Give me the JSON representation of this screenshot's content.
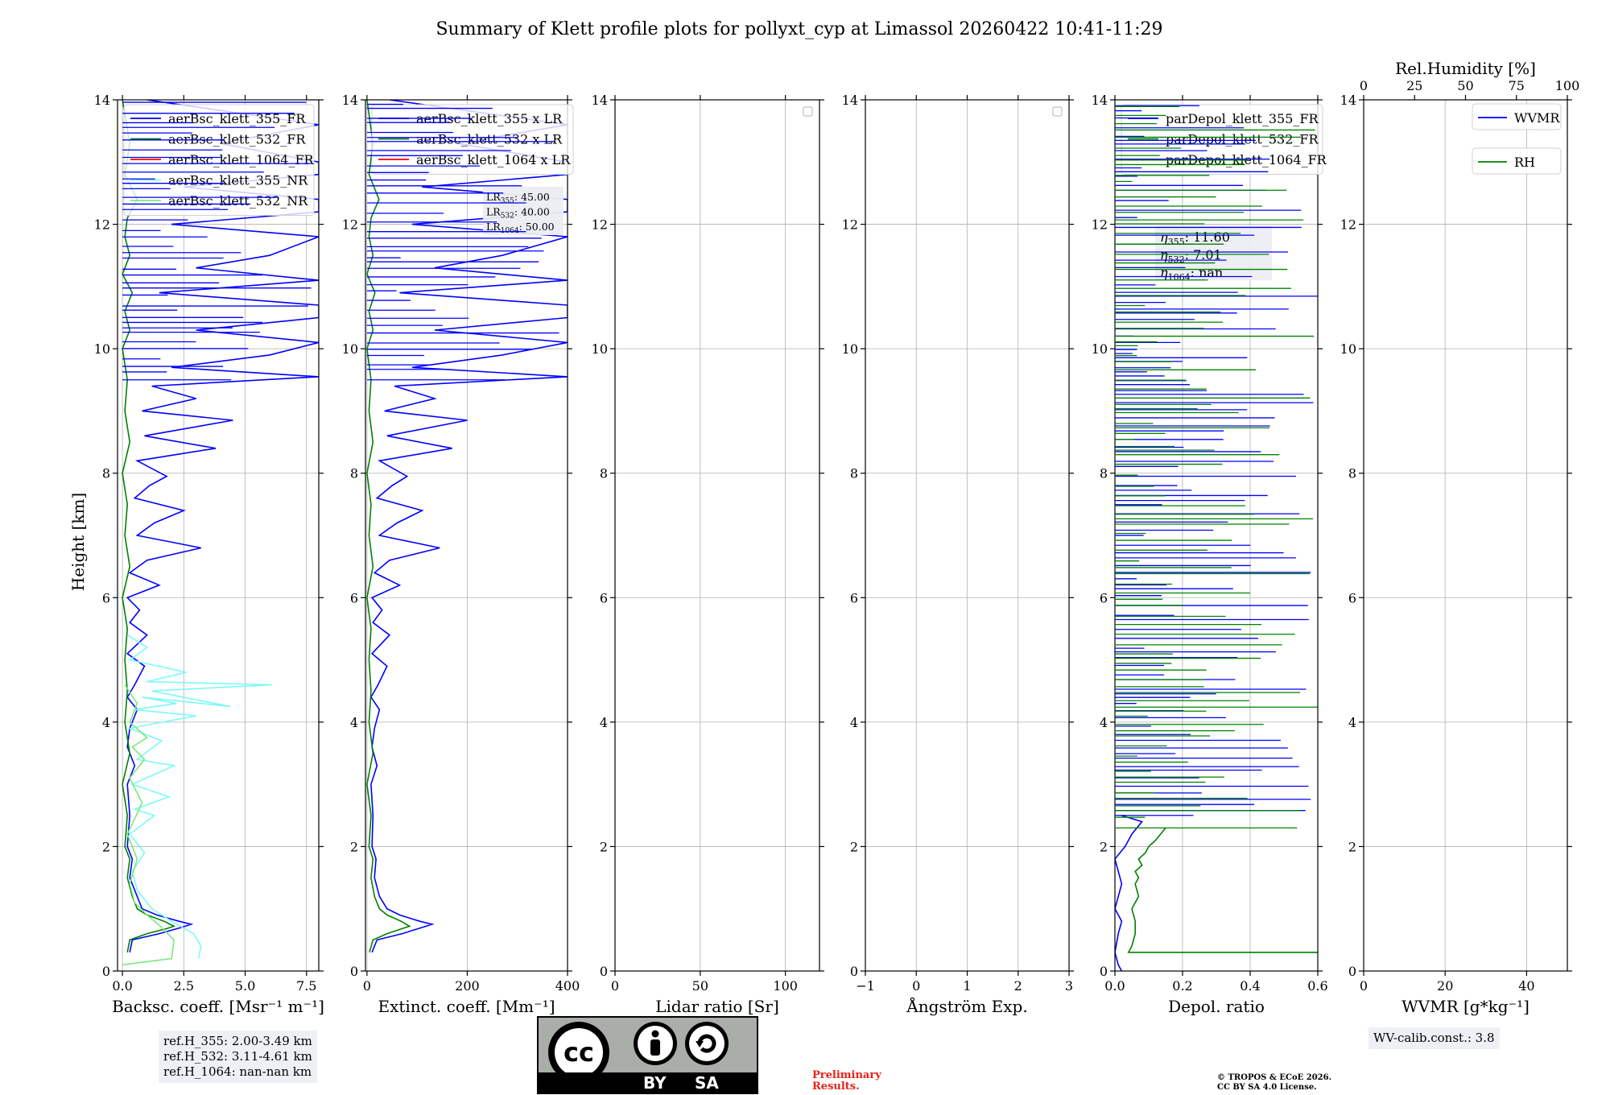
{
  "title": "Summary of Klett profile plots for pollyxt_cyp at Limassol 20260422 10:41-11:29",
  "ylabel": "Height [km]",
  "colors": {
    "blue": "#0000ff",
    "green": "#008000",
    "red": "#ff0000",
    "cyan": "#7cf9f9",
    "lightgreen": "#7ce87c"
  },
  "chart_data": [
    {
      "type": "line",
      "name": "backscatter",
      "xlabel": "Backsc. coeff. [Msr⁻¹ m⁻¹]",
      "xlim": [
        -0.2,
        8.0
      ],
      "ylim": [
        0,
        14
      ],
      "xticks": [
        0.0,
        2.5,
        5.0,
        7.5
      ],
      "xtick_labels": [
        "0.0",
        "2.5",
        "5.0",
        "7.5"
      ],
      "yticks": [
        0,
        2,
        4,
        6,
        8,
        10,
        12,
        14
      ],
      "ytick_labels": [
        "0",
        "2",
        "4",
        "6",
        "8",
        "10",
        "12",
        "14"
      ],
      "legend": [
        "aerBsc_klett_355_FR",
        "aerBsc_klett_532_FR",
        "aerBsc_klett_1064_FR",
        "aerBsc_klett_355_NR",
        "aerBsc_klett_532_NR"
      ],
      "legend_colors": [
        "blue",
        "green",
        "red",
        "cyan",
        "lightgreen"
      ],
      "series": [
        {
          "name": "aerBsc_klett_355_FR",
          "color": "blue",
          "x": [
            0.3,
            0.4,
            1.5,
            2.4,
            2.8,
            2.3,
            1.4,
            0.8,
            0.6,
            0.3,
            0.4,
            0.2,
            0.3,
            0.2,
            0.5,
            0.2,
            0.3,
            0.6,
            0.2,
            0.5,
            0.9,
            0.2,
            1.0,
            0.3,
            0.7,
            0.2,
            1.5,
            0.3,
            1.0,
            3.2,
            0.6,
            1.3,
            2.5,
            0.5,
            1.1,
            1.8,
            0.6,
            3.8,
            0.9,
            4.5,
            0.8,
            3.0,
            1.2,
            8.0,
            2.0,
            6.0,
            8.0,
            3.0,
            8.0,
            8.0,
            1.5,
            8.0,
            3.0,
            6.0,
            8.0,
            2.0,
            8.0,
            8.0,
            2.5,
            8.0,
            8.0,
            4.0,
            8.0,
            1.0
          ],
          "y": [
            0.3,
            0.5,
            0.6,
            0.7,
            0.75,
            0.8,
            0.9,
            1.0,
            1.2,
            1.5,
            1.8,
            2.0,
            2.5,
            3.0,
            3.3,
            3.6,
            3.9,
            4.2,
            4.4,
            4.6,
            4.9,
            5.1,
            5.4,
            5.6,
            5.8,
            6.0,
            6.2,
            6.4,
            6.6,
            6.8,
            7.0,
            7.2,
            7.4,
            7.6,
            7.8,
            7.95,
            8.2,
            8.4,
            8.6,
            8.85,
            9.0,
            9.2,
            9.4,
            9.55,
            9.7,
            9.9,
            10.1,
            10.3,
            10.5,
            10.7,
            10.9,
            11.1,
            11.3,
            11.5,
            11.8,
            12.0,
            12.2,
            12.4,
            12.6,
            12.8,
            13.0,
            13.3,
            13.6,
            14.0
          ]
        },
        {
          "name": "aerBsc_klett_532_FR",
          "color": "green",
          "x": [
            0.2,
            0.3,
            1.0,
            1.8,
            2.1,
            1.7,
            1.0,
            0.6,
            0.4,
            0.2,
            0.3,
            0.1,
            0.2,
            0.0,
            0.3,
            0.1,
            0.2,
            0.1,
            0.2,
            0.0,
            0.3,
            0.1,
            0.2,
            0.0,
            0.3,
            0.1,
            0.2,
            0.0,
            0.3,
            0.1,
            0.4,
            0.0,
            0.3,
            0.1,
            0.2,
            0.6,
            0.1,
            0.3,
            0.0
          ],
          "y": [
            0.3,
            0.5,
            0.6,
            0.68,
            0.72,
            0.8,
            0.9,
            1.0,
            1.2,
            1.5,
            1.8,
            2.0,
            2.5,
            3.0,
            3.5,
            4.0,
            4.5,
            5.0,
            5.5,
            6.0,
            6.5,
            7.0,
            7.5,
            8.0,
            8.5,
            9.0,
            9.5,
            10.0,
            10.3,
            10.6,
            10.9,
            11.2,
            11.5,
            11.8,
            12.1,
            12.4,
            12.8,
            13.3,
            14.0
          ]
        },
        {
          "name": "aerBsc_klett_355_NR",
          "color": "cyan",
          "x": [
            3.1,
            3.2,
            2.9,
            2.0,
            1.2,
            0.6,
            0.4,
            0.9,
            0.3,
            1.3,
            0.5,
            1.9,
            0.4,
            2.1,
            0.6,
            1.6,
            0.3,
            3.0,
            0.5,
            2.2,
            0.8,
            4.4,
            1.2,
            6.1,
            1.0,
            2.6,
            0.3,
            1.0,
            0.2
          ],
          "y": [
            0.2,
            0.4,
            0.6,
            0.8,
            1.0,
            1.3,
            1.6,
            1.9,
            2.2,
            2.5,
            2.6,
            2.8,
            3.0,
            3.3,
            3.4,
            3.7,
            3.9,
            4.1,
            4.2,
            4.3,
            4.4,
            4.25,
            4.5,
            4.6,
            4.65,
            4.8,
            5.0,
            5.2,
            5.4
          ]
        },
        {
          "name": "aerBsc_klett_532_NR",
          "color": "lightgreen",
          "x": [
            0.0,
            2.0,
            2.1,
            1.6,
            1.0,
            0.5,
            0.3,
            0.6,
            0.2,
            0.8,
            0.3,
            0.9,
            0.4,
            1.0,
            0.3,
            0.6,
            0.1
          ],
          "y": [
            0.1,
            0.2,
            0.5,
            0.7,
            0.9,
            1.1,
            1.4,
            1.8,
            2.2,
            2.7,
            3.1,
            3.4,
            3.6,
            3.75,
            4.0,
            4.3,
            4.6
          ]
        }
      ]
    },
    {
      "type": "line",
      "name": "extinction",
      "xlabel": "Extinct. coeff. [Mm⁻¹]",
      "xlim": [
        -3,
        400
      ],
      "ylim": [
        0,
        14
      ],
      "xticks": [
        0,
        200,
        400
      ],
      "xtick_labels": [
        "0",
        "200",
        "400"
      ],
      "yticks": [
        0,
        2,
        4,
        6,
        8,
        10,
        12,
        14
      ],
      "ytick_labels": [
        "0",
        "2",
        "4",
        "6",
        "8",
        "10",
        "12",
        "14"
      ],
      "legend": [
        "aerBsc_klett_355 x LR",
        "aerBsc_klett_532 x LR",
        "aerBsc_klett_1064 x LR"
      ],
      "legend_colors": [
        "blue",
        "green",
        "red"
      ],
      "lr_labels": [
        {
          "name": "LR",
          "sub": "355",
          "value": ": 45.00"
        },
        {
          "name": "LR",
          "sub": "532",
          "value": ": 40.00"
        },
        {
          "name": "LR",
          "sub": "1064",
          "value": ": 50.00"
        }
      ],
      "series": [
        {
          "name": "aerBsc_klett_355 x LR",
          "color": "blue",
          "x": [
            10,
            20,
            70,
            110,
            130,
            105,
            65,
            40,
            25,
            15,
            18,
            10,
            12,
            8,
            20,
            10,
            15,
            25,
            8,
            22,
            40,
            10,
            45,
            12,
            30,
            10,
            65,
            15,
            45,
            145,
            25,
            60,
            110,
            20,
            50,
            80,
            25,
            170,
            40,
            200,
            35,
            135,
            55,
            400,
            90,
            270,
            400,
            135,
            400,
            400,
            65,
            400,
            135,
            270,
            400,
            90,
            400,
            400,
            110,
            400,
            400,
            180,
            400,
            45
          ],
          "y": [
            0.3,
            0.5,
            0.6,
            0.7,
            0.75,
            0.8,
            0.9,
            1.0,
            1.2,
            1.5,
            1.8,
            2.0,
            2.5,
            3.0,
            3.3,
            3.6,
            3.9,
            4.2,
            4.4,
            4.6,
            4.9,
            5.1,
            5.4,
            5.6,
            5.8,
            6.0,
            6.2,
            6.4,
            6.6,
            6.8,
            7.0,
            7.2,
            7.4,
            7.6,
            7.8,
            7.95,
            8.2,
            8.4,
            8.6,
            8.85,
            9.0,
            9.2,
            9.4,
            9.55,
            9.7,
            9.9,
            10.1,
            10.3,
            10.5,
            10.7,
            10.9,
            11.1,
            11.3,
            11.5,
            11.8,
            12.0,
            12.2,
            12.4,
            12.6,
            12.8,
            13.0,
            13.3,
            13.6,
            14.0
          ]
        },
        {
          "name": "aerBsc_klett_532 x LR",
          "color": "green",
          "x": [
            5,
            12,
            40,
            70,
            85,
            68,
            40,
            25,
            15,
            8,
            12,
            4,
            8,
            0,
            12,
            4,
            8,
            4,
            8,
            0,
            12,
            4,
            8,
            0,
            12,
            4,
            8,
            0,
            12,
            4,
            16,
            0,
            12,
            4,
            8,
            24,
            4,
            12,
            0
          ],
          "y": [
            0.3,
            0.5,
            0.6,
            0.68,
            0.72,
            0.8,
            0.9,
            1.0,
            1.2,
            1.5,
            1.8,
            2.0,
            2.5,
            3.0,
            3.5,
            4.0,
            4.5,
            5.0,
            5.5,
            6.0,
            6.5,
            7.0,
            7.5,
            8.0,
            8.5,
            9.0,
            9.5,
            10.0,
            10.3,
            10.6,
            10.9,
            11.2,
            11.5,
            11.8,
            12.1,
            12.4,
            12.8,
            13.3,
            14.0
          ]
        }
      ]
    },
    {
      "type": "line",
      "name": "lidar_ratio",
      "xlabel": "Lidar ratio [Sr]",
      "xlim": [
        0,
        120
      ],
      "ylim": [
        0,
        14
      ],
      "xticks": [
        0,
        50,
        100
      ],
      "xtick_labels": [
        "0",
        "50",
        "100"
      ],
      "yticks": [
        0,
        2,
        4,
        6,
        8,
        10,
        12,
        14
      ],
      "ytick_labels": [
        "0",
        "2",
        "4",
        "6",
        "8",
        "10",
        "12",
        "14"
      ],
      "series": []
    },
    {
      "type": "line",
      "name": "angstrom",
      "xlabel": "Ångström Exp.",
      "xlim": [
        -1,
        3
      ],
      "ylim": [
        0,
        14
      ],
      "xticks": [
        -1,
        0,
        1,
        2,
        3
      ],
      "xtick_labels": [
        "−1",
        "0",
        "1",
        "2",
        "3"
      ],
      "yticks": [
        0,
        2,
        4,
        6,
        8,
        10,
        12,
        14
      ],
      "ytick_labels": [
        "0",
        "2",
        "4",
        "6",
        "8",
        "10",
        "12",
        "14"
      ],
      "series": []
    },
    {
      "type": "line",
      "name": "depolarization",
      "xlabel": "Depol. ratio",
      "xlim": [
        0,
        0.6
      ],
      "ylim": [
        0,
        14
      ],
      "xticks": [
        0.0,
        0.2,
        0.4,
        0.6
      ],
      "xtick_labels": [
        "0.0",
        "0.2",
        "0.4",
        "0.6"
      ],
      "yticks": [
        0,
        2,
        4,
        6,
        8,
        10,
        12,
        14
      ],
      "ytick_labels": [
        "0",
        "2",
        "4",
        "6",
        "8",
        "10",
        "12",
        "14"
      ],
      "legend": [
        "parDepol_klett_355_FR",
        "parDepol_klett_532_FR",
        "parDepol_klett_1064_FR"
      ],
      "legend_colors": [
        "blue",
        "green",
        "red"
      ],
      "eta_labels": [
        {
          "name": "η",
          "sub": "355",
          "value": ": 11.60"
        },
        {
          "name": "η",
          "sub": "532",
          "value": ": 7.01"
        },
        {
          "name": "η",
          "sub": "1064",
          "value": ": nan"
        }
      ],
      "series": [
        {
          "name": "parDepol_klett_355_FR",
          "color": "blue",
          "x": [
            0.02,
            0.01,
            0.0,
            0.01,
            0.02,
            0.0,
            0.01,
            0.02,
            0.01,
            0.0,
            0.03,
            0.05,
            0.08,
            0.02
          ],
          "y": [
            0.0,
            0.1,
            0.3,
            0.6,
            0.8,
            1.0,
            1.2,
            1.4,
            1.6,
            1.8,
            2.0,
            2.2,
            2.4,
            2.5
          ]
        },
        {
          "name": "parDepol_klett_532_FR",
          "color": "green",
          "x": [
            0.6,
            0.04,
            0.05,
            0.06,
            0.06,
            0.05,
            0.07,
            0.06,
            0.07,
            0.06,
            0.08,
            0.07,
            0.09,
            0.1,
            0.12,
            0.15
          ],
          "y": [
            0.3,
            0.3,
            0.4,
            0.6,
            0.8,
            1.0,
            1.2,
            1.4,
            1.5,
            1.6,
            1.7,
            1.8,
            1.9,
            2.0,
            2.1,
            2.3
          ]
        }
      ]
    },
    {
      "type": "line",
      "name": "wvmr",
      "xlabel": "WVMR [g*kg⁻¹]",
      "x2label": "Rel.Humidity [%]",
      "xlim": [
        0,
        50
      ],
      "x2lim": [
        0,
        100
      ],
      "ylim": [
        0,
        14
      ],
      "xticks": [
        0,
        20,
        40
      ],
      "xtick_labels": [
        "0",
        "20",
        "40"
      ],
      "x2ticks": [
        0,
        25,
        50,
        75,
        100
      ],
      "x2tick_labels": [
        "0",
        "25",
        "50",
        "75",
        "100"
      ],
      "yticks": [
        0,
        2,
        4,
        6,
        8,
        10,
        12,
        14
      ],
      "ytick_labels": [
        "0",
        "2",
        "4",
        "6",
        "8",
        "10",
        "12",
        "14"
      ],
      "legend": [
        "WVMR",
        "RH"
      ],
      "legend_colors": [
        "blue",
        "green"
      ],
      "series": []
    }
  ],
  "ref_heights": [
    "ref.H_355: 2.00-3.49 km",
    "ref.H_532: 3.11-4.61 km",
    "ref.H_1064: nan-nan km"
  ],
  "wv_calib": "WV-calib.const.: 3.8",
  "license_badge": {
    "by": "BY",
    "sa": "SA",
    "cc": "cc"
  },
  "preliminary": [
    "Preliminary",
    "Results."
  ],
  "copyright": [
    "© TROPOS & ECoE 2026.",
    "CC BY SA 4.0 License."
  ]
}
